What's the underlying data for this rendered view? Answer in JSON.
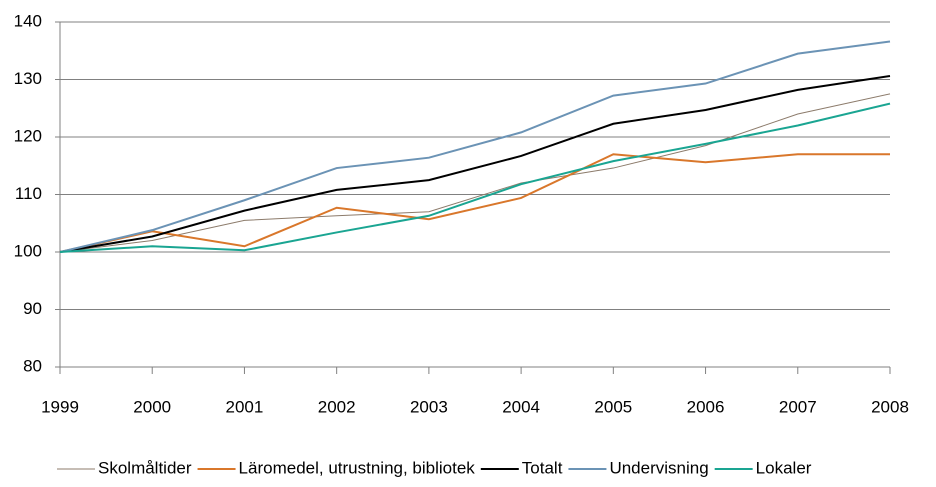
{
  "chart_data": {
    "type": "line",
    "x": [
      1999,
      2000,
      2001,
      2002,
      2003,
      2004,
      2005,
      2006,
      2007,
      2008
    ],
    "xlim": [
      1999,
      2008
    ],
    "xticks": [
      1999,
      2000,
      2001,
      2002,
      2003,
      2004,
      2005,
      2006,
      2007,
      2008
    ],
    "ylim": [
      80,
      140
    ],
    "yticks": [
      80,
      90,
      100,
      110,
      120,
      130,
      140
    ],
    "grid": true,
    "legend": "bottom",
    "series": [
      {
        "name": "Skolmåltider",
        "color": "#8c7b6b",
        "values": [
          100,
          102.0,
          105.5,
          106.3,
          107.0,
          112.0,
          114.6,
          118.5,
          124.0,
          127.5
        ]
      },
      {
        "name": "Läromedel, utrustning, bibliotek",
        "color": "#d9772b",
        "values": [
          100,
          103.6,
          101.0,
          107.7,
          105.7,
          109.4,
          117.0,
          115.6,
          117.0,
          117.0
        ]
      },
      {
        "name": "Totalt",
        "color": "#000000",
        "values": [
          100,
          102.7,
          107.2,
          110.8,
          112.5,
          116.7,
          122.3,
          124.7,
          128.2,
          130.6
        ]
      },
      {
        "name": "Undervisning",
        "color": "#6b93b5",
        "values": [
          100,
          103.8,
          109.0,
          114.6,
          116.4,
          120.8,
          127.2,
          129.3,
          134.5,
          136.6
        ]
      },
      {
        "name": "Lokaler",
        "color": "#1aa592",
        "values": [
          100,
          101.0,
          100.3,
          103.4,
          106.3,
          111.8,
          115.8,
          118.8,
          122.0,
          125.8
        ]
      }
    ]
  }
}
